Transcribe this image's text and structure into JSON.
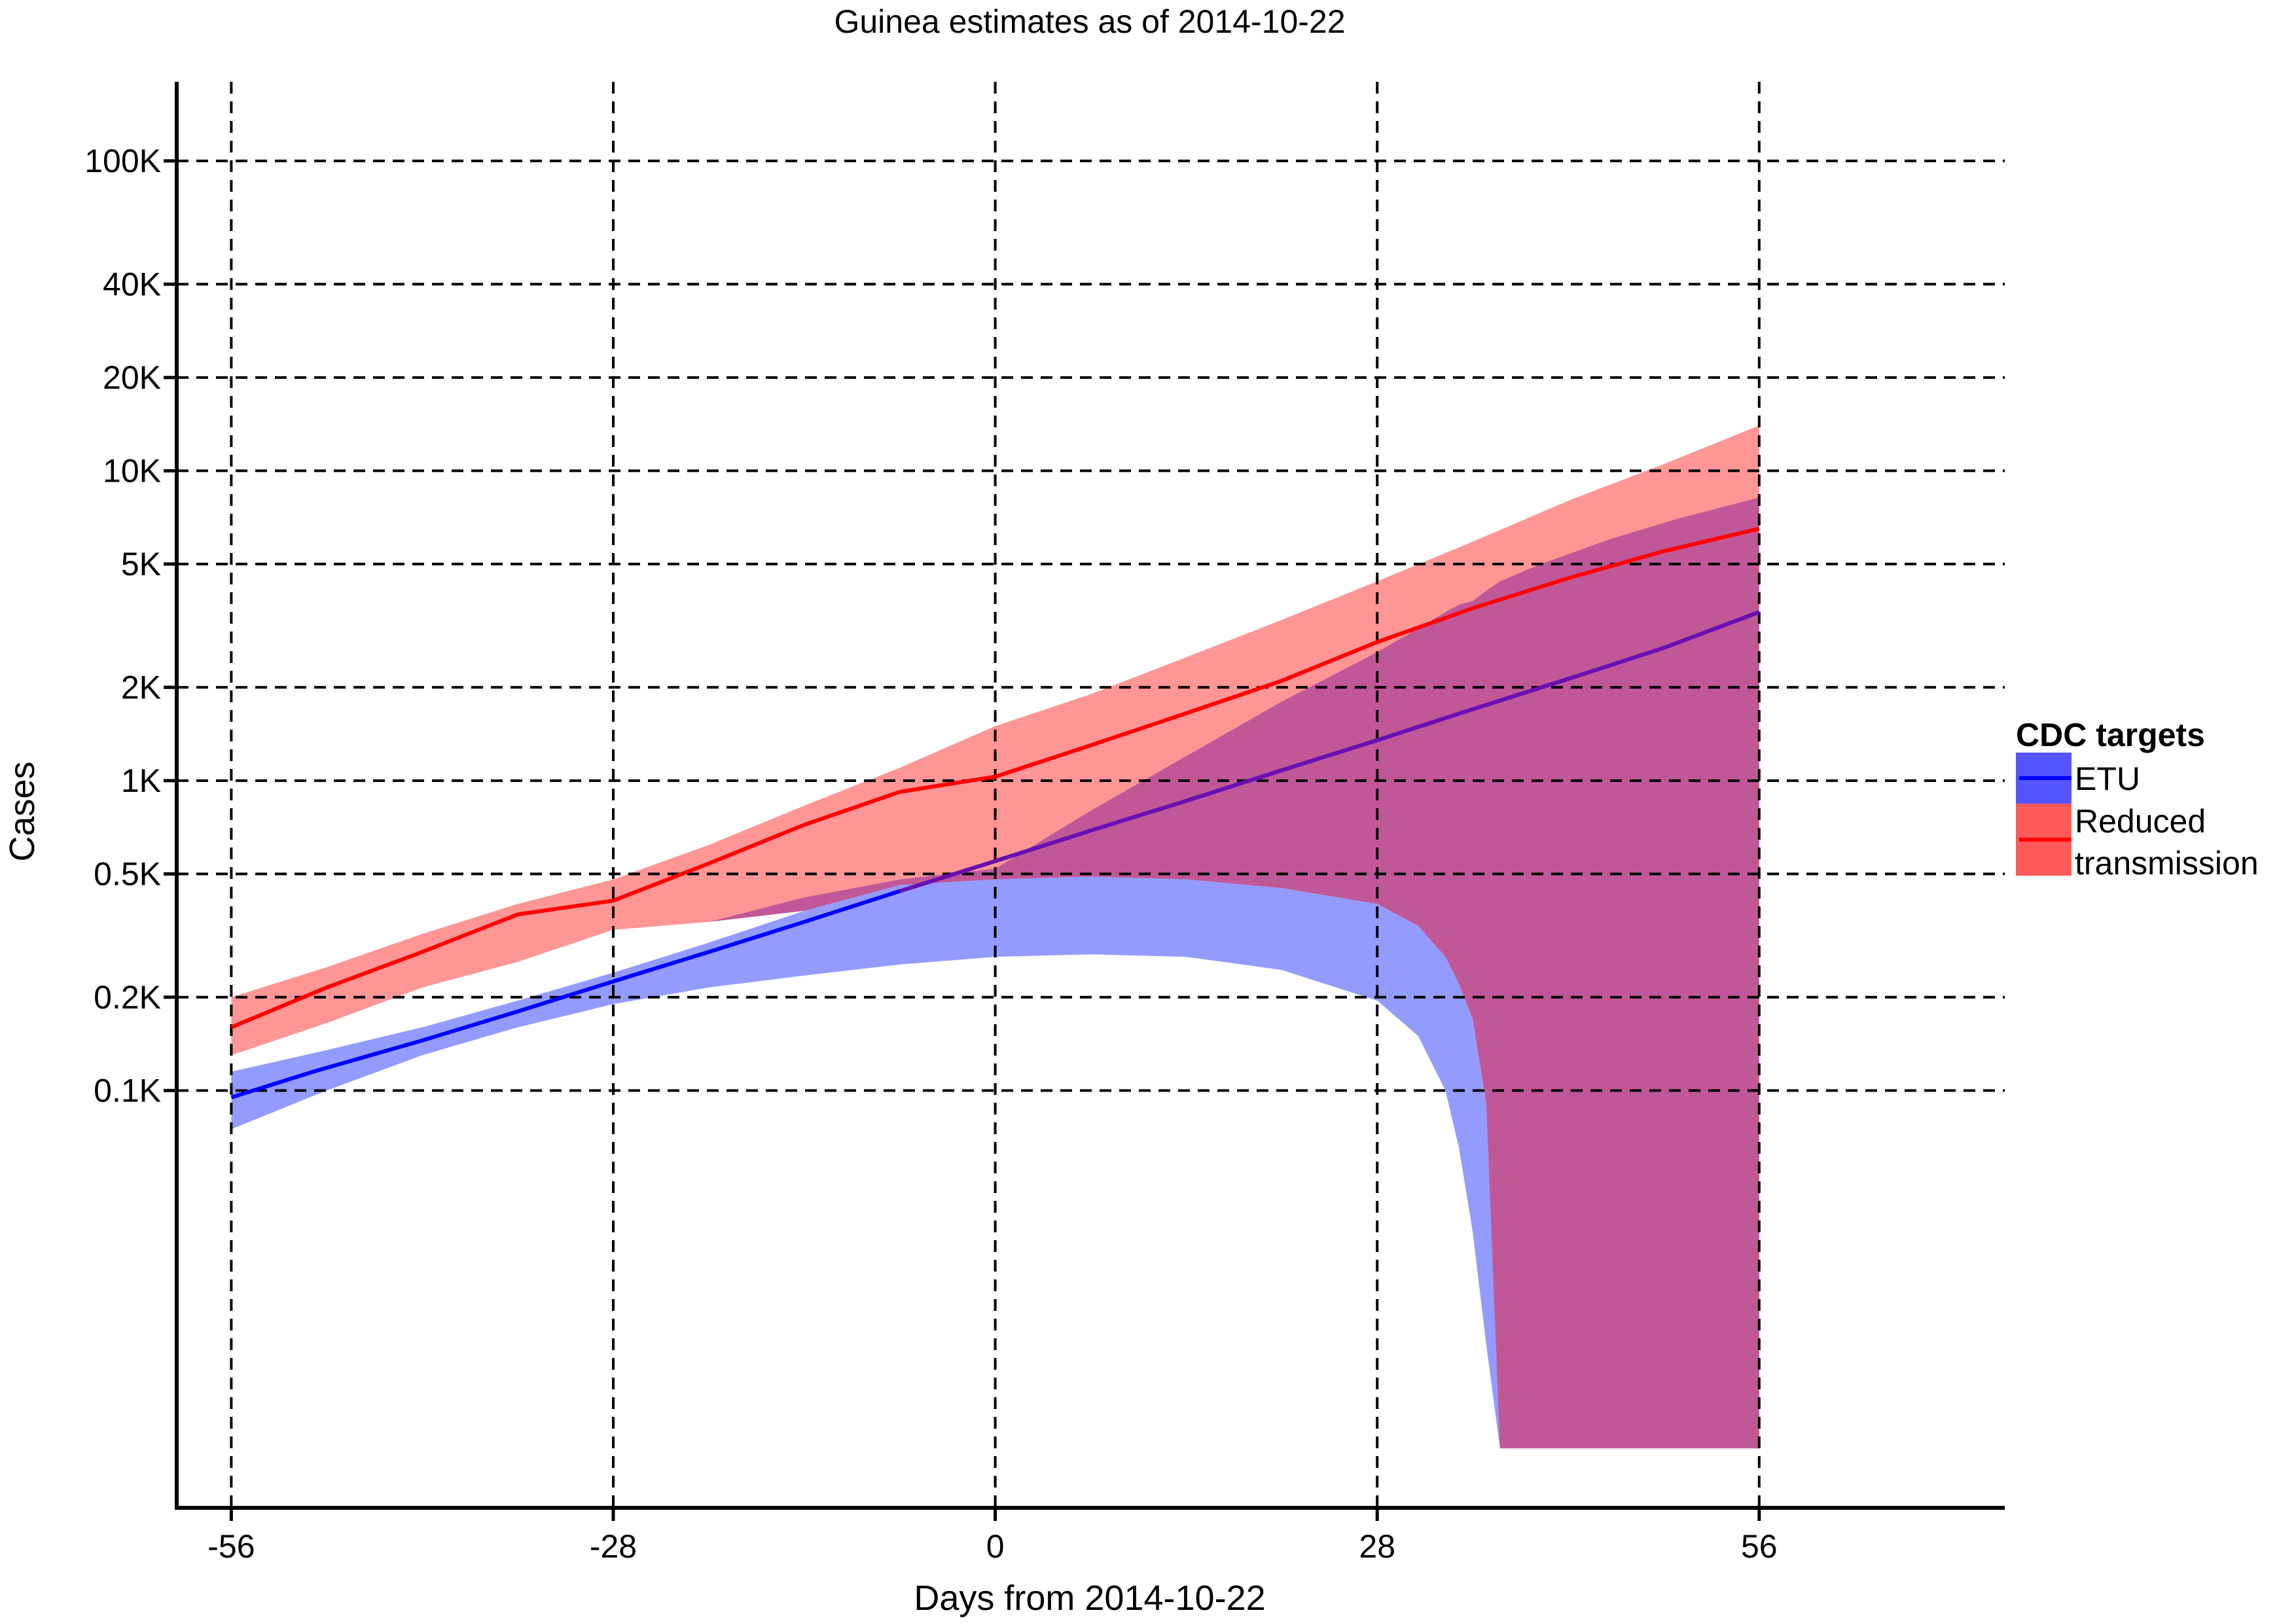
{
  "chart_data": {
    "type": "area",
    "title": "Guinea estimates as of 2014-10-22",
    "xlabel": "Days from 2014-10-22",
    "ylabel": "Cases",
    "xlim": [
      -60,
      74
    ],
    "x_ticks": [
      -56,
      -28,
      0,
      28,
      56
    ],
    "x_tick_labels": [
      "-56",
      "-28",
      "0",
      "28",
      "56"
    ],
    "y_scale": "log",
    "ylim": [
      4.5,
      180000
    ],
    "y_ticks": [
      100,
      200,
      500,
      1000,
      2000,
      5000,
      10000,
      20000,
      40000,
      100000
    ],
    "y_tick_labels": [
      "0.1K",
      "0.2K",
      "0.5K",
      "1K",
      "2K",
      "5K",
      "10K",
      "20K",
      "40K",
      "100K"
    ],
    "grid": true,
    "legend": {
      "title": "CDC targets",
      "position": "right",
      "entries": [
        {
          "label_lines": [
            "ETU"
          ]
        },
        {
          "label_lines": [
            "Reduced",
            "transmission"
          ]
        }
      ]
    },
    "colors": {
      "etu_line": "#0000ff",
      "etu_band": "#6670ff",
      "reduced_line": "#ff0000",
      "reduced_band": "#ff6a6a",
      "overlap": "#c05898",
      "legend_etu_key": "#5555ff",
      "legend_reduced_key": "#ff5a5a"
    },
    "series": [
      {
        "name": "ETU",
        "x": [
          -56,
          -50,
          -42,
          -35,
          -28,
          -21,
          -14,
          -7,
          0,
          7,
          14,
          21,
          28,
          35,
          42,
          49,
          56
        ],
        "values": [
          95,
          115,
          145,
          180,
          225,
          280,
          350,
          440,
          550,
          690,
          860,
          1080,
          1350,
          1700,
          2130,
          2680,
          3500
        ],
        "band": {
          "x": [
            -56,
            -49,
            -42,
            -35,
            -28,
            -21,
            -14,
            -7,
            0,
            7,
            14,
            21,
            28,
            31,
            33,
            34,
            35,
            36,
            37,
            40,
            45,
            50,
            56
          ],
          "upper": [
            115,
            135,
            160,
            195,
            240,
            300,
            380,
            460,
            480,
            490,
            480,
            450,
            400,
            340,
            270,
            220,
            170,
            90,
            40,
            40,
            40,
            40,
            40
          ],
          "lower": [
            75,
            100,
            130,
            160,
            190,
            215,
            235,
            255,
            270,
            275,
            270,
            245,
            195,
            150,
            100,
            65,
            35,
            15,
            7,
            7,
            7,
            7,
            7
          ]
        }
      },
      {
        "name": "Reduced transmission",
        "x": [
          -56,
          -49,
          -42,
          -35,
          -28,
          -21,
          -14,
          -7,
          0,
          7,
          14,
          21,
          28,
          35,
          42,
          49,
          56
        ],
        "values": [
          160,
          215,
          280,
          370,
          410,
          540,
          720,
          920,
          1030,
          1300,
          1650,
          2100,
          2800,
          3600,
          4500,
          5500,
          6500
        ],
        "band": {
          "x": [
            -56,
            -49,
            -42,
            -35,
            -28,
            -21,
            -14,
            -7,
            0,
            7,
            14,
            21,
            28,
            35,
            42,
            49,
            56
          ],
          "upper": [
            200,
            250,
            320,
            400,
            480,
            620,
            830,
            1100,
            1500,
            1900,
            2500,
            3300,
            4400,
            5900,
            8000,
            10500,
            14000
          ],
          "lower": [
            130,
            165,
            215,
            260,
            330,
            350,
            420,
            480,
            520,
            800,
            1200,
            1800,
            2600,
            3800,
            5000,
            6500,
            8200
          ]
        }
      }
    ],
    "overlap_region": {
      "x": [
        -28,
        -21,
        -14,
        -7,
        0,
        7,
        14,
        21,
        28,
        31,
        33,
        34,
        35,
        36,
        37,
        40,
        45,
        50,
        56
      ],
      "upper": [
        330,
        350,
        420,
        480,
        520,
        800,
        1200,
        1800,
        2600,
        3100,
        3500,
        3700,
        3800,
        4100,
        4400,
        5000,
        6000,
        7000,
        8200
      ],
      "lower": [
        330,
        350,
        380,
        460,
        480,
        490,
        480,
        450,
        400,
        340,
        270,
        220,
        170,
        90,
        7,
        7,
        7,
        7,
        7
      ]
    }
  }
}
